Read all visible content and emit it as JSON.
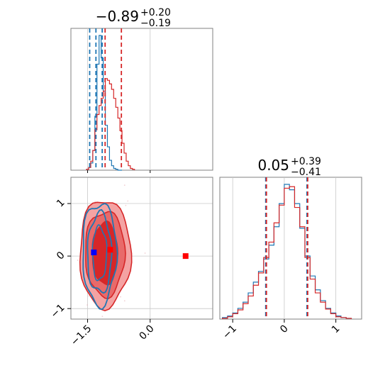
{
  "colors": {
    "red": "#d62728",
    "blue": "#1f77b4",
    "red_fill_light": "#f4a3a3",
    "red_fill_mid": "#e86a6a",
    "grid": "#c8c8c8",
    "marker_blue": "#0000ff",
    "marker_red": "#ff0000"
  },
  "chart_data": [
    {
      "type": "histogram",
      "panel": "top-left",
      "title_value": "−0.89",
      "title_upper": "+0.20",
      "title_lower": "−0.19",
      "xlim": [
        -1.9,
        1.5
      ],
      "grid": true,
      "series": [
        {
          "name": "",
          "color": "#1f77b4",
          "style": "step",
          "bin_centers": [
            -1.5,
            -1.45,
            -1.4,
            -1.35,
            -1.3,
            -1.25,
            -1.2,
            -1.15,
            -1.1,
            -1.05,
            -1.0,
            -0.95,
            -0.9,
            -0.85,
            -0.8,
            -0.75,
            -0.7
          ],
          "counts": [
            1,
            3,
            8,
            22,
            60,
            118,
            150,
            125,
            88,
            50,
            26,
            11,
            5,
            2,
            1,
            0,
            0
          ],
          "quantile_lines": [
            -1.45,
            -1.3,
            -1.15
          ]
        },
        {
          "name": "",
          "color": "#d62728",
          "style": "step",
          "bin_centers": [
            -1.5,
            -1.45,
            -1.4,
            -1.35,
            -1.3,
            -1.25,
            -1.2,
            -1.15,
            -1.1,
            -1.05,
            -1.0,
            -0.95,
            -0.9,
            -0.85,
            -0.8,
            -0.75,
            -0.7,
            -0.65,
            -0.6,
            -0.55,
            -0.5,
            -0.45,
            -0.4
          ],
          "counts": [
            1,
            3,
            10,
            22,
            45,
            62,
            72,
            80,
            88,
            102,
            100,
            96,
            90,
            80,
            70,
            58,
            44,
            30,
            19,
            10,
            5,
            2,
            1
          ],
          "quantile_lines": [
            -1.08,
            -0.69
          ]
        }
      ]
    },
    {
      "type": "scatter-contour",
      "panel": "bottom-left",
      "xlim": [
        -1.9,
        1.5
      ],
      "ylim": [
        -1.2,
        1.5
      ],
      "x_ticks": [
        -1.5,
        0.0
      ],
      "x_tick_labels": [
        "−1.5",
        "0.0"
      ],
      "y_ticks": [
        -1,
        0,
        1
      ],
      "y_tick_labels": [
        "−1",
        "0",
        "1"
      ],
      "grid": true,
      "red_center": [
        -1.05,
        0.05
      ],
      "blue_center": [
        -1.35,
        0.05
      ],
      "markers": [
        {
          "x": -1.35,
          "y": 0.07,
          "color": "#0000ff",
          "shape": "square"
        },
        {
          "x": -0.96,
          "y": 0.12,
          "color": "#ff0000",
          "shape": "square"
        },
        {
          "x": 0.85,
          "y": 0.0,
          "color": "#ff0000",
          "shape": "square"
        }
      ]
    },
    {
      "type": "histogram",
      "panel": "bottom-right",
      "title_value": "0.05",
      "title_upper": "+0.39",
      "title_lower": "−0.41",
      "xlim": [
        -1.25,
        1.5
      ],
      "x_ticks": [
        -1,
        0,
        1
      ],
      "x_tick_labels": [
        "−1",
        "0",
        "1"
      ],
      "grid": true,
      "series": [
        {
          "name": "",
          "color": "#1f77b4",
          "style": "step",
          "bin_centers": [
            -1.15,
            -1.05,
            -0.95,
            -0.85,
            -0.75,
            -0.65,
            -0.55,
            -0.45,
            -0.35,
            -0.25,
            -0.15,
            -0.05,
            0.05,
            0.15,
            0.25,
            0.35,
            0.45,
            0.55,
            0.65,
            0.75,
            0.85,
            0.95,
            1.05,
            1.15,
            1.25
          ],
          "counts": [
            2,
            4,
            8,
            14,
            22,
            34,
            48,
            62,
            78,
            96,
            120,
            150,
            175,
            168,
            150,
            118,
            82,
            56,
            38,
            24,
            14,
            8,
            4,
            2,
            1
          ],
          "quantile_lines": [
            -0.36,
            0.44
          ]
        },
        {
          "name": "",
          "color": "#d62728",
          "style": "step",
          "bin_centers": [
            -1.15,
            -1.05,
            -0.95,
            -0.85,
            -0.75,
            -0.65,
            -0.55,
            -0.45,
            -0.35,
            -0.25,
            -0.15,
            -0.05,
            0.05,
            0.15,
            0.25,
            0.35,
            0.45,
            0.55,
            0.65,
            0.75,
            0.85,
            0.95,
            1.05,
            1.15,
            1.25
          ],
          "counts": [
            1,
            3,
            7,
            12,
            20,
            30,
            44,
            60,
            80,
            100,
            125,
            148,
            170,
            172,
            145,
            120,
            80,
            52,
            34,
            22,
            13,
            7,
            3,
            2,
            1
          ],
          "quantile_lines": [
            -0.36,
            0.44
          ]
        }
      ]
    }
  ]
}
